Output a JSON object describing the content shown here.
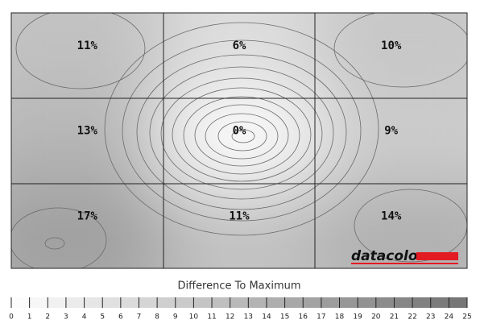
{
  "chart_data": {
    "type": "uniformity",
    "values": [
      11,
      6,
      10,
      13,
      0,
      9,
      17,
      11,
      14
    ],
    "value_labels": [
      "11%",
      "6%",
      "10%",
      "13%",
      "0%",
      "9%",
      "17%",
      "11%",
      "14%"
    ],
    "columns": 3,
    "logo": "datacolor",
    "legend_title": "Difference To Maximum",
    "legend_ticks": [
      0,
      1,
      2,
      3,
      4,
      5,
      6,
      7,
      8,
      9,
      10,
      11,
      12,
      13,
      14,
      15,
      16,
      17,
      18,
      19,
      20,
      21,
      22,
      23,
      24,
      25
    ]
  }
}
